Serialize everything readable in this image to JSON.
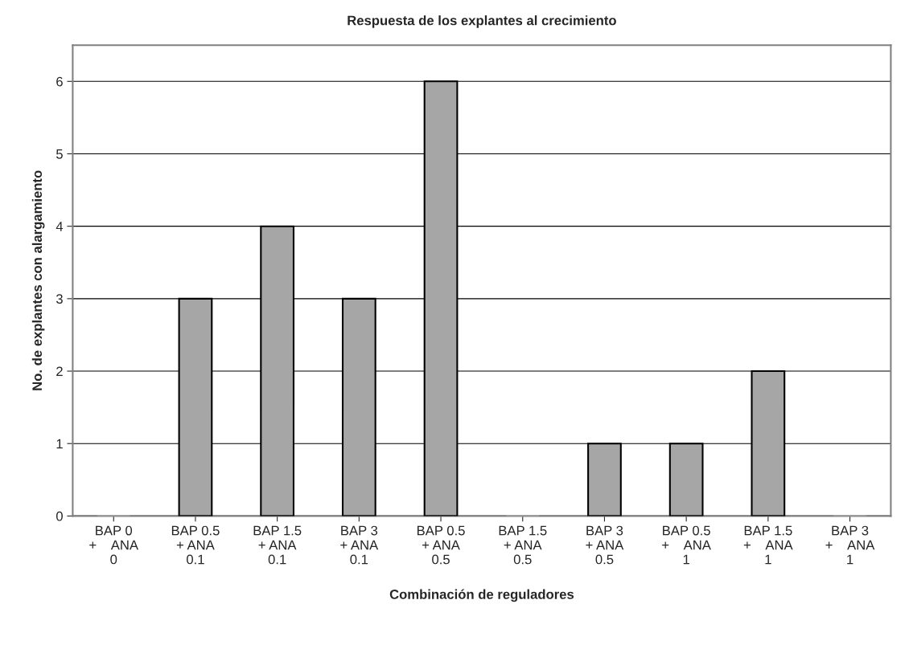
{
  "chart_data": {
    "type": "bar",
    "title": "Respuesta de los explantes al crecimiento",
    "xlabel": "Combinación de reguladores",
    "ylabel": "No. de explantes con alargamiento",
    "categories": [
      "BAP 0\n+    ANA\n0",
      "BAP 0.5\n+ ANA\n0.1",
      "BAP 1.5\n+ ANA\n0.1",
      "BAP 3\n+ ANA\n0.1",
      "BAP 0.5\n+ ANA\n0.5",
      "BAP 1.5\n+ ANA\n0.5",
      "BAP 3\n+ ANA\n0.5",
      "BAP 0.5\n+    ANA\n1",
      "BAP 1.5\n+    ANA\n1",
      "BAP 3\n+    ANA\n1"
    ],
    "values": [
      0,
      3,
      4,
      3,
      6,
      0,
      1,
      1,
      2,
      0
    ],
    "color": "#a6a6a6",
    "ylim": [
      0,
      6.5
    ],
    "yticks": [
      0,
      1,
      2,
      3,
      4,
      5,
      6
    ],
    "grid": "y"
  }
}
